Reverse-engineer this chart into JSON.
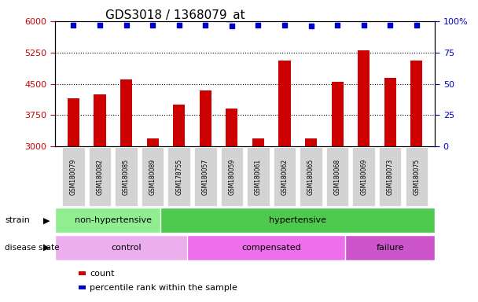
{
  "title": "GDS3018 / 1368079_at",
  "samples": [
    "GSM180079",
    "GSM180082",
    "GSM180085",
    "GSM180089",
    "GSM178755",
    "GSM180057",
    "GSM180059",
    "GSM180061",
    "GSM180062",
    "GSM180065",
    "GSM180068",
    "GSM180069",
    "GSM180073",
    "GSM180075"
  ],
  "counts": [
    4150,
    4250,
    4600,
    3200,
    4000,
    4350,
    3900,
    3200,
    5050,
    3200,
    4550,
    5300,
    4650,
    5050
  ],
  "percentiles": [
    97,
    97,
    97,
    97,
    97,
    97,
    96,
    97,
    97,
    96,
    97,
    97,
    97,
    97
  ],
  "strain_groups": [
    {
      "label": "non-hypertensive",
      "start": 0,
      "end": 4,
      "color": "#90EE90"
    },
    {
      "label": "hypertensive",
      "start": 4,
      "end": 14,
      "color": "#4DC94D"
    }
  ],
  "disease_groups": [
    {
      "label": "control",
      "start": 0,
      "end": 5,
      "color": "#EDAEED"
    },
    {
      "label": "compensated",
      "start": 5,
      "end": 11,
      "color": "#EE6EEE"
    },
    {
      "label": "failure",
      "start": 11,
      "end": 14,
      "color": "#CC55CC"
    }
  ],
  "ylim_left": [
    3000,
    6000
  ],
  "ylim_right": [
    0,
    100
  ],
  "yticks_left": [
    3000,
    3750,
    4500,
    5250,
    6000
  ],
  "yticks_right": [
    0,
    25,
    50,
    75,
    100
  ],
  "bar_color": "#CC0000",
  "dot_color": "#0000CC",
  "axis_color_left": "#CC0000",
  "axis_color_right": "#0000CC",
  "grid_dotted_vals": [
    3750,
    4500,
    5250
  ],
  "label_bg": "#D3D3D3"
}
